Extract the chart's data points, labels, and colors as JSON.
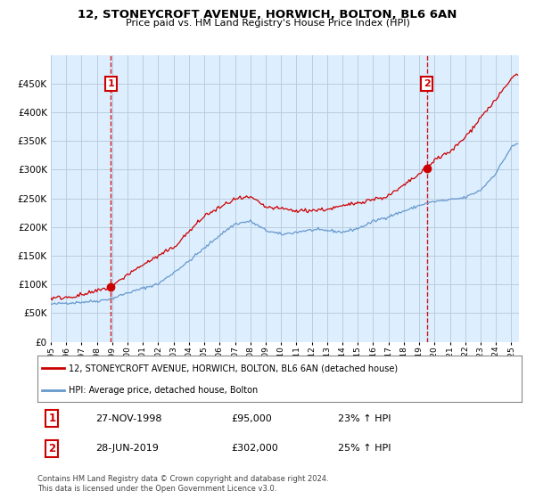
{
  "title": "12, STONEYCROFT AVENUE, HORWICH, BOLTON, BL6 6AN",
  "subtitle": "Price paid vs. HM Land Registry's House Price Index (HPI)",
  "legend_line1": "12, STONEYCROFT AVENUE, HORWICH, BOLTON, BL6 6AN (detached house)",
  "legend_line2": "HPI: Average price, detached house, Bolton",
  "note": "Contains HM Land Registry data © Crown copyright and database right 2024.\nThis data is licensed under the Open Government Licence v3.0.",
  "purchase1_date": "27-NOV-1998",
  "purchase1_price": 95000,
  "purchase1_hpi": "23% ↑ HPI",
  "purchase2_date": "28-JUN-2019",
  "purchase2_price": 302000,
  "purchase2_hpi": "25% ↑ HPI",
  "xlim_start": 1995.0,
  "xlim_end": 2025.5,
  "ylim_bottom": 0,
  "ylim_top": 500000,
  "red_color": "#cc0000",
  "blue_color": "#6699cc",
  "dashed_color": "#cc0000",
  "background_color": "#ffffff",
  "chart_bg_color": "#ddeeff",
  "grid_color": "#bbccdd"
}
